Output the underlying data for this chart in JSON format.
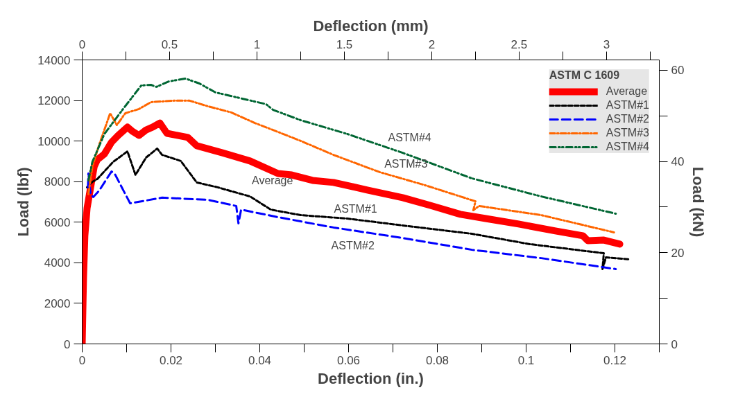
{
  "chart_data": {
    "type": "line",
    "xlabel": "Deflection (in.)",
    "ylabel": "Load (lbf)",
    "y2label": "Load (kN)",
    "x2label": "Deflection (mm)",
    "legend_title": "ASTM C 1609",
    "xlim": [
      0,
      0.13
    ],
    "ylim": [
      0,
      14000
    ],
    "y2lim": [
      0,
      62.275
    ],
    "x2lim": [
      0,
      3.302
    ],
    "xticks": [
      0,
      {
        "value": 0.01,
        "label": null
      },
      {
        "value": 0.02,
        "label": "0.02"
      },
      {
        "value": 0.03,
        "label": null
      },
      {
        "value": 0.04,
        "label": "0.04"
      },
      {
        "value": 0.05,
        "label": null
      },
      {
        "value": 0.06,
        "label": "0.06"
      },
      {
        "value": 0.07,
        "label": null
      },
      {
        "value": 0.08,
        "label": "0.08"
      },
      {
        "value": 0.09,
        "label": null
      },
      {
        "value": 0.1,
        "label": "0.1"
      },
      {
        "value": 0.11,
        "label": null
      },
      {
        "value": 0.12,
        "label": "0.12"
      },
      {
        "value": 0.13,
        "label": null
      }
    ],
    "yticks": [
      0,
      2000,
      4000,
      6000,
      8000,
      10000,
      12000,
      14000
    ],
    "y2ticks": [
      0,
      {
        "value": 10,
        "label": null
      },
      20,
      {
        "value": 30,
        "label": null
      },
      40,
      {
        "value": 50,
        "label": null
      },
      60
    ],
    "x2ticks": [
      0,
      {
        "value": 0.25,
        "label": null
      },
      {
        "value": 0.5,
        "label": "0.5"
      },
      {
        "value": 0.75,
        "label": null
      },
      1,
      {
        "value": 1.25,
        "label": null
      },
      {
        "value": 1.5,
        "label": "1.5"
      },
      {
        "value": 1.75,
        "label": null
      },
      2,
      {
        "value": 2.25,
        "label": null
      },
      {
        "value": 2.5,
        "label": "2.5"
      },
      {
        "value": 2.75,
        "label": null
      },
      3,
      {
        "value": 3.25,
        "label": null
      }
    ],
    "grid": false,
    "legend": "top right",
    "marker": "none",
    "series": [
      {
        "name": "Average",
        "color": "#ff0000",
        "line_style": "solid",
        "x": [
          0,
          0.0002,
          0.0003,
          0.0006,
          0.0011,
          0.0019,
          0.0027,
          0.0034,
          0.005,
          0.0066,
          0.0081,
          0.0102,
          0.0113,
          0.0128,
          0.0144,
          0.0159,
          0.0175,
          0.0191,
          0.0214,
          0.0238,
          0.0258,
          0.0316,
          0.0378,
          0.0441,
          0.0472,
          0.0519,
          0.0566,
          0.0644,
          0.0722,
          0.0784,
          0.0852,
          0.0909,
          0.0983,
          0.1066,
          0.1128,
          0.1139,
          0.1175,
          0.1211
        ],
        "values": [
          0,
          2250,
          3280,
          5330,
          6690,
          7720,
          8740,
          9080,
          9360,
          9940,
          10280,
          10690,
          10480,
          10280,
          10550,
          10690,
          10890,
          10380,
          10280,
          10180,
          9770,
          9420,
          9020,
          8400,
          8330,
          8060,
          7960,
          7580,
          7210,
          6830,
          6390,
          6180,
          5910,
          5570,
          5330,
          5090,
          5120,
          4920
        ]
      },
      {
        "name": "ASTM#1",
        "color": "#000000",
        "line_style": "dashed",
        "x": [
          0.0011,
          0.0023,
          0.0034,
          0.007,
          0.0102,
          0.012,
          0.0144,
          0.0169,
          0.018,
          0.0222,
          0.0258,
          0.0305,
          0.0378,
          0.0425,
          0.0492,
          0.0597,
          0.0722,
          0.0878,
          0.1008,
          0.1175,
          0.1172,
          0.118,
          0.1233
        ],
        "values": [
          7720,
          7990,
          8130,
          8980,
          9490,
          8330,
          9190,
          9630,
          9320,
          9020,
          7960,
          7720,
          7270,
          6620,
          6350,
          6180,
          5840,
          5430,
          4920,
          4470,
          3690,
          4270,
          4170
        ]
      },
      {
        "name": "ASTM#2",
        "color": "#0000ff",
        "line_style": "dashed",
        "x": [
          0.0013,
          0.0014,
          0.0019,
          0.0025,
          0.0038,
          0.0066,
          0.0073,
          0.0108,
          0.018,
          0.0284,
          0.0347,
          0.0352,
          0.0358,
          0.0441,
          0.0566,
          0.0722,
          0.0878,
          0.1034,
          0.1202
        ],
        "values": [
          7720,
          8400,
          7380,
          7240,
          7550,
          8500,
          8400,
          6930,
          7210,
          7100,
          6800,
          5940,
          6620,
          6250,
          5740,
          5220,
          4640,
          4230,
          3690
        ]
      },
      {
        "name": "ASTM#3",
        "color": "#ff6600",
        "line_style": "dashed",
        "x": [
          0.0014,
          0.0023,
          0.0039,
          0.0063,
          0.0078,
          0.0097,
          0.0128,
          0.0155,
          0.0206,
          0.0242,
          0.0284,
          0.0336,
          0.0389,
          0.0441,
          0.0492,
          0.0566,
          0.067,
          0.0773,
          0.0886,
          0.0881,
          0.0894,
          0.1034,
          0.1198
        ],
        "values": [
          7380,
          8740,
          9870,
          11370,
          10790,
          11370,
          11580,
          11920,
          11990,
          11990,
          11710,
          11410,
          10890,
          10450,
          10010,
          9320,
          8470,
          7820,
          7030,
          6590,
          6800,
          6350,
          5500
        ]
      },
      {
        "name": "ASTM#4",
        "color": "#006633",
        "line_style": "dashed",
        "x": [
          0.0014,
          0.0023,
          0.005,
          0.0092,
          0.0133,
          0.0155,
          0.0167,
          0.0195,
          0.0233,
          0.0264,
          0.03,
          0.0414,
          0.043,
          0.0492,
          0.0597,
          0.0722,
          0.0878,
          0.1034,
          0.1202
        ],
        "values": [
          8060,
          8980,
          10350,
          11580,
          12740,
          12770,
          12670,
          12940,
          13080,
          12840,
          12400,
          11820,
          11540,
          11030,
          10350,
          9420,
          8160,
          7270,
          6420
        ]
      }
    ],
    "annotations": [
      {
        "text": "ASTM#4",
        "x": 0.0722,
        "y": 9420
      },
      {
        "text": "ASTM#3",
        "x": 0.067,
        "y": 8470
      },
      {
        "text": "Average",
        "x": 0.0441,
        "y": 8400
      },
      {
        "text": "ASTM#1",
        "x": 0.0597,
        "y": 6180
      },
      {
        "text": "ASTM#2",
        "x": 0.0566,
        "y": 5737
      }
    ]
  }
}
